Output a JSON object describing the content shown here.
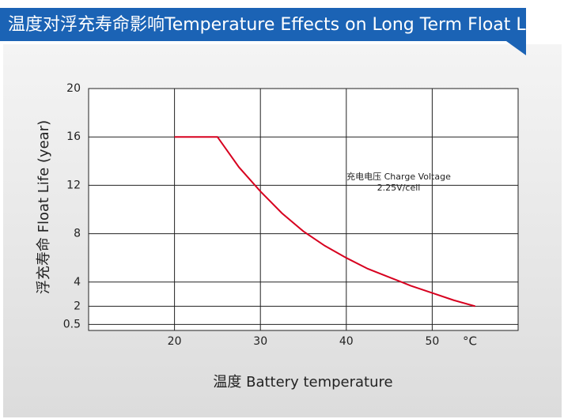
{
  "chart_data": {
    "type": "line",
    "title": "温度对浮充寿命影响Temperature Effects on Long Term Float Life",
    "x_label": "温度  Battery temperature",
    "y_label": "浮充寿命  Float Life (year)",
    "x_unit": "°C",
    "annotations": [
      "充电电压 Charge Voltage",
      "2.25V/cell"
    ],
    "xlim": [
      10,
      60
    ],
    "xticks": [
      20,
      30,
      40,
      50
    ],
    "ylim": [
      0,
      20
    ],
    "yticks": [
      20,
      16,
      12,
      8,
      4,
      2,
      0.5
    ],
    "grid": true,
    "series": [
      {
        "color": "#d7001f",
        "x": [
          20,
          25,
          27.5,
          30,
          32.5,
          35,
          37.5,
          40,
          42.5,
          45,
          47.5,
          50,
          52.5,
          55
        ],
        "values": [
          16,
          16,
          13.5,
          11.5,
          9.7,
          8.2,
          7.0,
          6.0,
          5.1,
          4.4,
          3.7,
          3.1,
          2.5,
          2.0
        ]
      }
    ]
  }
}
